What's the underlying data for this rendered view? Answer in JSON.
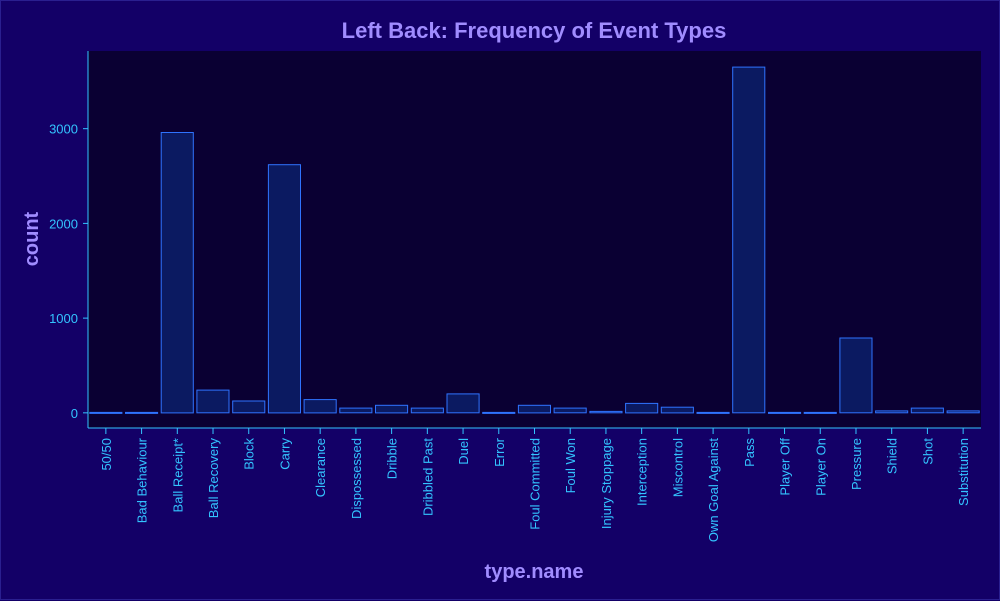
{
  "chart_data": {
    "type": "bar",
    "title": "Left Back: Frequency of Event Types",
    "xlabel": "type.name",
    "ylabel": "count",
    "ylim": [
      -160,
      3820
    ],
    "yticks": [
      0,
      1000,
      2000,
      3000
    ],
    "grid": false,
    "categories": [
      "50/50",
      "Bad Behaviour",
      "Ball Receipt*",
      "Ball Recovery",
      "Block",
      "Carry",
      "Clearance",
      "Dispossessed",
      "Dribble",
      "Dribbled Past",
      "Duel",
      "Error",
      "Foul Committed",
      "Foul Won",
      "Injury Stoppage",
      "Interception",
      "Miscontrol",
      "Own Goal Against",
      "Pass",
      "Player Off",
      "Player On",
      "Pressure",
      "Shield",
      "Shot",
      "Substitution"
    ],
    "values": [
      5,
      5,
      2960,
      240,
      125,
      2620,
      140,
      50,
      80,
      50,
      200,
      5,
      80,
      50,
      15,
      100,
      60,
      5,
      3650,
      5,
      5,
      790,
      20,
      50,
      20
    ]
  },
  "colors": {
    "background": "#130067",
    "plot": "#0a0033",
    "bar_fill": "#0b1a61",
    "bar_stroke": "#2f73ff",
    "axis": "#33c4ff",
    "title": "#a08cff"
  }
}
